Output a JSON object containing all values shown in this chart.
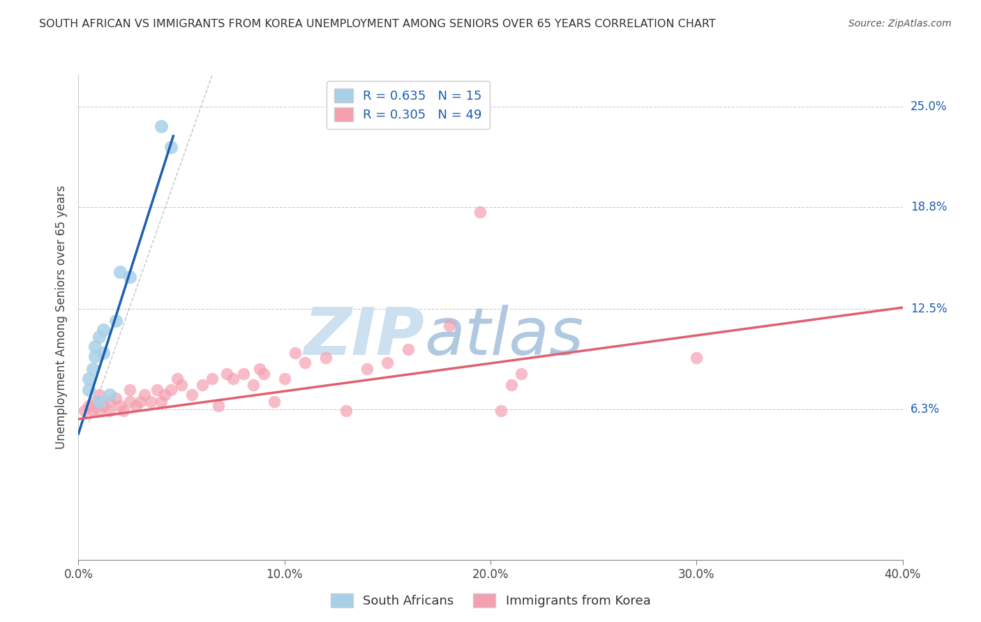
{
  "title": "SOUTH AFRICAN VS IMMIGRANTS FROM KOREA UNEMPLOYMENT AMONG SENIORS OVER 65 YEARS CORRELATION CHART",
  "source": "Source: ZipAtlas.com",
  "ylabel": "Unemployment Among Seniors over 65 years",
  "xlim": [
    0.0,
    0.4
  ],
  "ylim": [
    -0.03,
    0.27
  ],
  "yticks": [
    0.063,
    0.125,
    0.188,
    0.25
  ],
  "ytick_labels": [
    "6.3%",
    "12.5%",
    "18.8%",
    "25.0%"
  ],
  "xticks": [
    0.0,
    0.1,
    0.2,
    0.3,
    0.4
  ],
  "xtick_labels": [
    "0.0%",
    "10.0%",
    "20.0%",
    "30.0%",
    "40.0%"
  ],
  "legend_labels": [
    "South Africans",
    "Immigrants from Korea"
  ],
  "R_blue": 0.635,
  "N_blue": 15,
  "R_pink": 0.305,
  "N_pink": 49,
  "blue_color": "#a8d0e8",
  "pink_color": "#f4a0b0",
  "blue_line_color": "#1a5fb0",
  "pink_line_color": "#e06070",
  "watermark_zip": "ZIP",
  "watermark_atlas": "atlas",
  "watermark_color_zip": "#cce0f0",
  "watermark_color_atlas": "#b0c8e0",
  "blue_scatter_x": [
    0.005,
    0.005,
    0.007,
    0.008,
    0.008,
    0.01,
    0.01,
    0.012,
    0.012,
    0.015,
    0.018,
    0.02,
    0.025,
    0.04,
    0.045
  ],
  "blue_scatter_y": [
    0.075,
    0.082,
    0.088,
    0.096,
    0.102,
    0.068,
    0.108,
    0.098,
    0.112,
    0.072,
    0.118,
    0.148,
    0.145,
    0.238,
    0.225
  ],
  "blue_line_x": [
    0.0,
    0.045
  ],
  "blue_line_y_intercept": 0.048,
  "blue_line_slope": 4.0,
  "pink_scatter_x": [
    0.003,
    0.005,
    0.007,
    0.008,
    0.01,
    0.01,
    0.012,
    0.015,
    0.015,
    0.018,
    0.02,
    0.022,
    0.025,
    0.025,
    0.028,
    0.03,
    0.032,
    0.035,
    0.038,
    0.04,
    0.042,
    0.045,
    0.048,
    0.05,
    0.055,
    0.06,
    0.065,
    0.068,
    0.072,
    0.075,
    0.08,
    0.085,
    0.088,
    0.09,
    0.095,
    0.1,
    0.105,
    0.11,
    0.12,
    0.13,
    0.14,
    0.15,
    0.16,
    0.18,
    0.195,
    0.205,
    0.215,
    0.21,
    0.3
  ],
  "pink_scatter_y": [
    0.062,
    0.065,
    0.062,
    0.068,
    0.062,
    0.072,
    0.065,
    0.062,
    0.068,
    0.07,
    0.065,
    0.062,
    0.068,
    0.075,
    0.065,
    0.068,
    0.072,
    0.068,
    0.075,
    0.068,
    0.072,
    0.075,
    0.082,
    0.078,
    0.072,
    0.078,
    0.082,
    0.065,
    0.085,
    0.082,
    0.085,
    0.078,
    0.088,
    0.085,
    0.068,
    0.082,
    0.098,
    0.092,
    0.095,
    0.062,
    0.088,
    0.092,
    0.1,
    0.115,
    0.185,
    0.062,
    0.085,
    0.078,
    0.095
  ],
  "pink_line_x_start": 0.0,
  "pink_line_x_end": 0.4,
  "pink_line_y_start": 0.057,
  "pink_line_y_end": 0.126
}
